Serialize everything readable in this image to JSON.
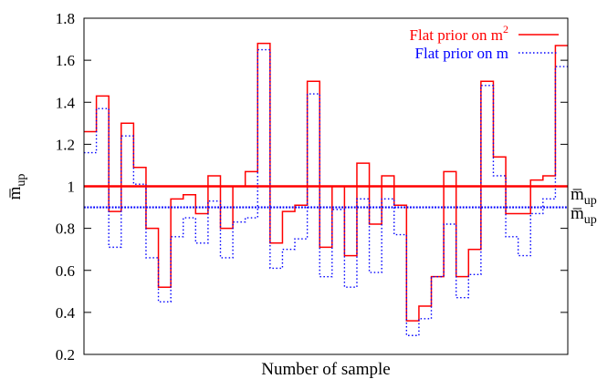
{
  "chart_data": {
    "type": "line",
    "title": "",
    "xlabel": "Number of sample",
    "ylabel": "m̅",
    "ylabel_subscript": "up",
    "ylim": [
      0.2,
      1.8
    ],
    "yticks": [
      0.2,
      0.4,
      0.6,
      0.8,
      1.0,
      1.2,
      1.4,
      1.6,
      1.8
    ],
    "ytick_labels": [
      "0.2",
      "0.4",
      "0.6",
      "0.8",
      "1",
      "1.2",
      "1.4",
      "1.6",
      "1.8"
    ],
    "xlim": [
      0,
      50
    ],
    "grid": false,
    "legend_position": "top-right",
    "series": [
      {
        "name": "Flat prior on m",
        "name_superscript": "2",
        "style": "solid",
        "color": "#ff0000",
        "step_values": [
          1.26,
          1.43,
          0.88,
          1.3,
          1.09,
          0.8,
          0.52,
          0.94,
          0.96,
          0.87,
          1.05,
          0.8,
          1.0,
          1.07,
          1.68,
          0.73,
          0.88,
          0.91,
          1.5,
          0.71,
          1.0,
          0.67,
          1.11,
          0.82,
          1.05,
          0.91,
          0.36,
          0.43,
          0.57,
          1.07,
          0.57,
          0.7,
          1.5,
          1.14,
          0.87,
          0.87,
          1.03,
          1.05,
          1.67
        ],
        "mean": 1.0
      },
      {
        "name": "Flat prior on m",
        "style": "dotted",
        "color": "#0000ff",
        "step_values": [
          1.16,
          1.37,
          0.71,
          1.24,
          1.01,
          0.66,
          0.45,
          0.76,
          0.85,
          0.73,
          0.93,
          0.66,
          0.83,
          0.85,
          1.65,
          0.61,
          0.7,
          0.75,
          1.44,
          0.57,
          0.89,
          0.52,
          0.94,
          0.59,
          0.94,
          0.77,
          0.29,
          0.37,
          0.57,
          0.82,
          0.47,
          0.58,
          1.48,
          1.05,
          0.76,
          0.67,
          0.87,
          0.94,
          1.57
        ],
        "mean": 0.9
      }
    ],
    "mean_labels": [
      {
        "text": "m̅",
        "subscript": "up",
        "series": 0
      },
      {
        "text": "m̅",
        "subscript": "up",
        "series": 1
      }
    ]
  }
}
